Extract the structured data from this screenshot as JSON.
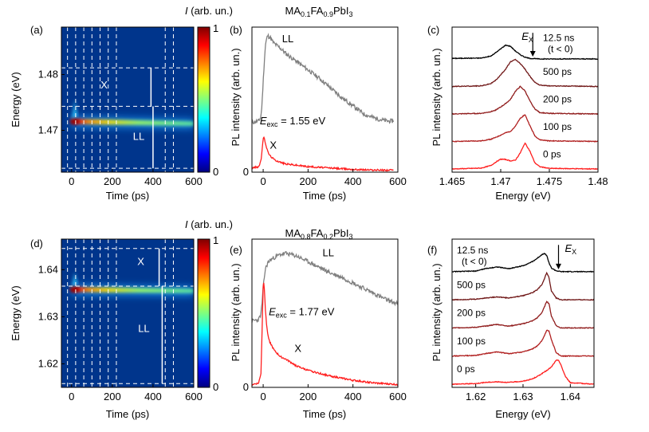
{
  "figure": {
    "titles": {
      "top": {
        "base": "MA",
        "s1": "0.1",
        "mid": "FA",
        "s2": "0.9",
        "end": "PbI",
        "s3": "3"
      },
      "bottom": {
        "base": "MA",
        "s1": "0.8",
        "mid": "FA",
        "s2": "0.2",
        "end": "PbI",
        "s3": "3"
      }
    },
    "colorbar": {
      "label_main": "I",
      "label_rest": " (arb. un.)",
      "tick_top": "1",
      "tick_bottom": "0",
      "stops": [
        "#00007f",
        "#0000ff",
        "#007fff",
        "#00ffff",
        "#7fff7f",
        "#ffff00",
        "#ff7f00",
        "#ff0000",
        "#7f0000"
      ]
    },
    "colors": {
      "grey": "#7f7f7f",
      "red": "#ff1e1e",
      "black": "#000000",
      "dark_red1": "#701818",
      "dark_red2": "#901c1c",
      "dark_red3": "#b01f1f",
      "map_bg": "#00358c"
    }
  },
  "chart_data": [
    {
      "id": "a",
      "panel_label": "(a)",
      "type": "heatmap",
      "xlabel": "Time (ps)",
      "ylabel": "Energy (eV)",
      "xlim": [
        -50,
        600
      ],
      "ylim": [
        1.4625,
        1.4885
      ],
      "xticks": [
        "0",
        "200",
        "400",
        "600"
      ],
      "xtick_values": [
        0,
        200,
        400,
        600
      ],
      "yticks": [
        "1.47",
        "1.48"
      ],
      "ytick_values": [
        1.47,
        1.48
      ],
      "dashed_times": [
        -20,
        20,
        60,
        100,
        140,
        180,
        220,
        460,
        500
      ],
      "dashed_energies": [
        1.4812,
        1.4743,
        1.4632
      ],
      "band_center": 1.4716,
      "band_end": 1.4712,
      "tail": {
        "t_from": 0,
        "t_to": 30,
        "e_to": 1.4755
      },
      "peak_time": 15,
      "labels": [
        {
          "text": "X",
          "t": 160,
          "e": 1.4775
        },
        {
          "text": "LL",
          "t": 330,
          "e": 1.4683
        }
      ],
      "separators": [
        {
          "t": 390,
          "e1": 1.4812,
          "e2": 1.4743
        },
        {
          "t": 400,
          "e1": 1.4743,
          "e2": 1.4632
        }
      ]
    },
    {
      "id": "b",
      "panel_label": "(b)",
      "type": "line",
      "xlabel": "Time (ps)",
      "ylabel": "PL intensity (arb. un.)",
      "xlim": [
        -50,
        600
      ],
      "ylim": [
        0,
        1.05
      ],
      "xticks": [
        "0",
        "200",
        "400",
        "600"
      ],
      "xtick_values": [
        0,
        200,
        400,
        600
      ],
      "ytick_label": "0",
      "series": [
        {
          "name": "LL",
          "color": "grey",
          "t": [
            -50,
            -20,
            -10,
            -5,
            0,
            5,
            10,
            15,
            20,
            25,
            30,
            40,
            50,
            75,
            100,
            150,
            200,
            250,
            300,
            350,
            400,
            450,
            500,
            550,
            580
          ],
          "v": [
            0.36,
            0.37,
            0.4,
            0.5,
            0.65,
            0.8,
            0.92,
            0.96,
            0.99,
            0.98,
            0.98,
            0.95,
            0.93,
            0.9,
            0.86,
            0.8,
            0.74,
            0.68,
            0.61,
            0.54,
            0.48,
            0.42,
            0.39,
            0.37,
            0.37
          ]
        },
        {
          "name": "X",
          "color": "red",
          "t": [
            -50,
            -20,
            -10,
            -5,
            0,
            5,
            10,
            20,
            30,
            50,
            80,
            100,
            150,
            200,
            300,
            400,
            500,
            580
          ],
          "v": [
            0.03,
            0.04,
            0.08,
            0.16,
            0.24,
            0.25,
            0.21,
            0.15,
            0.12,
            0.09,
            0.07,
            0.06,
            0.05,
            0.04,
            0.03,
            0.02,
            0.015,
            0.015
          ]
        }
      ],
      "labels": [
        {
          "text": "LL",
          "t": 110,
          "v": 0.94
        },
        {
          "text": "X",
          "t": 45,
          "v": 0.17
        }
      ],
      "annotation": {
        "main": "E",
        "sub": "exc",
        "rest": " =  1.55 eV",
        "t": -15,
        "v": 0.345
      }
    },
    {
      "id": "c",
      "panel_label": "(c)",
      "type": "line",
      "xlabel": "Energy (eV)",
      "ylabel": "PL intensity (arb. un.)",
      "xlim": [
        1.465,
        1.48
      ],
      "xticks": [
        "1.465",
        "1.47",
        "1.475",
        "1.48"
      ],
      "xtick_values": [
        1.465,
        1.47,
        1.475,
        1.48
      ],
      "marker": {
        "label_main": "E",
        "label_sub": "X",
        "x": 1.4733
      },
      "spectra": [
        {
          "label": "12.5 ns",
          "label2": "(t < 0)",
          "color": "black",
          "offset": 4,
          "x": [
            1.465,
            1.468,
            1.469,
            1.4695,
            1.47,
            1.4705,
            1.471,
            1.4715,
            1.472,
            1.4725,
            1.473,
            1.4735,
            1.474,
            1.48
          ],
          "y": [
            0.02,
            0.03,
            0.1,
            0.22,
            0.35,
            0.48,
            0.44,
            0.28,
            0.15,
            0.06,
            0.02,
            0.01,
            0.0,
            0.0
          ]
        },
        {
          "label": "500 ps",
          "color": "dark_red1",
          "offset": 3,
          "x": [
            1.465,
            1.468,
            1.469,
            1.4695,
            1.47,
            1.4705,
            1.471,
            1.4715,
            1.472,
            1.4725,
            1.473,
            1.4735,
            1.474,
            1.475,
            1.48
          ],
          "y": [
            0.0,
            0.02,
            0.1,
            0.22,
            0.4,
            0.6,
            0.85,
            0.93,
            0.8,
            0.6,
            0.35,
            0.15,
            0.05,
            0.02,
            0.0
          ]
        },
        {
          "label": "200 ps",
          "color": "dark_red2",
          "offset": 2,
          "x": [
            1.465,
            1.468,
            1.469,
            1.4695,
            1.47,
            1.4705,
            1.471,
            1.4715,
            1.472,
            1.4725,
            1.473,
            1.4735,
            1.474,
            1.475,
            1.48
          ],
          "y": [
            0.0,
            0.02,
            0.08,
            0.14,
            0.24,
            0.36,
            0.5,
            0.78,
            0.95,
            0.8,
            0.45,
            0.18,
            0.05,
            0.02,
            0.0
          ]
        },
        {
          "label": "100 ps",
          "color": "dark_red3",
          "offset": 1,
          "x": [
            1.465,
            1.468,
            1.469,
            1.4695,
            1.47,
            1.4705,
            1.471,
            1.4715,
            1.472,
            1.4725,
            1.473,
            1.4735,
            1.474,
            1.475,
            1.48
          ],
          "y": [
            0.0,
            0.02,
            0.08,
            0.14,
            0.22,
            0.3,
            0.35,
            0.52,
            0.8,
            0.93,
            0.55,
            0.2,
            0.06,
            0.02,
            0.0
          ]
        },
        {
          "label": "0 ps",
          "color": "red",
          "offset": 0,
          "x": [
            1.465,
            1.468,
            1.469,
            1.4695,
            1.47,
            1.4705,
            1.471,
            1.4715,
            1.472,
            1.4725,
            1.473,
            1.4735,
            1.474,
            1.475,
            1.48
          ],
          "y": [
            0.0,
            0.03,
            0.12,
            0.24,
            0.34,
            0.33,
            0.28,
            0.3,
            0.55,
            0.9,
            0.62,
            0.22,
            0.08,
            0.02,
            0.0
          ]
        }
      ]
    },
    {
      "id": "d",
      "panel_label": "(d)",
      "type": "heatmap",
      "xlabel": "Time (ps)",
      "ylabel": "Energy (eV)",
      "xlim": [
        -50,
        600
      ],
      "ylim": [
        1.615,
        1.6465
      ],
      "xticks": [
        "0",
        "200",
        "400",
        "600"
      ],
      "xtick_values": [
        0,
        200,
        400,
        600
      ],
      "yticks": [
        "1.62",
        "1.63",
        "1.64"
      ],
      "ytick_values": [
        1.62,
        1.63,
        1.64
      ],
      "dashed_times": [
        -20,
        20,
        60,
        100,
        140,
        180,
        220,
        460,
        500
      ],
      "dashed_energies": [
        1.6445,
        1.6365,
        1.6158
      ],
      "band_center": 1.6358,
      "band_end": 1.6355,
      "tail": {
        "t_from": 0,
        "t_to": 30,
        "e_to": 1.6395
      },
      "peak_time": 15,
      "labels": [
        {
          "text": "X",
          "t": 340,
          "e": 1.641
        },
        {
          "text": "LL",
          "t": 355,
          "e": 1.6268
        }
      ],
      "separators": [
        {
          "t": 430,
          "e1": 1.6445,
          "e2": 1.6365
        },
        {
          "t": 445,
          "e1": 1.6365,
          "e2": 1.6158
        }
      ]
    },
    {
      "id": "e",
      "panel_label": "(e)",
      "type": "line",
      "xlabel": "Time (ps)",
      "ylabel": "PL intensity (arb. un.)",
      "xlim": [
        -50,
        600
      ],
      "ylim": [
        0,
        1.05
      ],
      "xticks": [
        "0",
        "200",
        "400",
        "600"
      ],
      "xtick_values": [
        0,
        200,
        400,
        600
      ],
      "ytick_label": "0",
      "series": [
        {
          "name": "LL",
          "color": "grey",
          "t": [
            -50,
            -20,
            -10,
            -5,
            0,
            5,
            10,
            20,
            30,
            50,
            75,
            100,
            150,
            200,
            250,
            300,
            350,
            400,
            450,
            500,
            550,
            600
          ],
          "v": [
            0.47,
            0.48,
            0.52,
            0.6,
            0.7,
            0.78,
            0.84,
            0.88,
            0.9,
            0.92,
            0.94,
            0.95,
            0.93,
            0.89,
            0.85,
            0.81,
            0.78,
            0.74,
            0.7,
            0.66,
            0.62,
            0.59
          ]
        },
        {
          "name": "X",
          "color": "red",
          "t": [
            -50,
            -20,
            -10,
            -5,
            0,
            3,
            6,
            10,
            15,
            20,
            30,
            50,
            75,
            100,
            150,
            200,
            250,
            300,
            400,
            500,
            600
          ],
          "v": [
            0.02,
            0.03,
            0.1,
            0.4,
            0.72,
            0.75,
            0.68,
            0.55,
            0.45,
            0.38,
            0.32,
            0.26,
            0.22,
            0.2,
            0.15,
            0.12,
            0.1,
            0.08,
            0.05,
            0.03,
            0.02
          ]
        }
      ],
      "labels": [
        {
          "text": "LL",
          "t": 290,
          "v": 0.93
        },
        {
          "text": "X",
          "t": 155,
          "v": 0.25
        }
      ],
      "annotation": {
        "main": "E",
        "sub": "exc",
        "rest": " =  1.77 eV",
        "t": 25,
        "v": 0.51
      }
    },
    {
      "id": "f",
      "panel_label": "(f)",
      "type": "line",
      "xlabel": "Energy (eV)",
      "ylabel": "PL intensity (arb. un.)",
      "xlim": [
        1.615,
        1.645
      ],
      "xticks": [
        "1.62",
        "1.63",
        "1.64"
      ],
      "xtick_values": [
        1.62,
        1.63,
        1.64
      ],
      "marker": {
        "label_main": "E",
        "label_sub": "X",
        "x": 1.6375
      },
      "spectra": [
        {
          "label": "12.5 ns",
          "label2": "(t < 0)",
          "color": "black",
          "offset": 4,
          "x": [
            1.615,
            1.62,
            1.622,
            1.6245,
            1.627,
            1.63,
            1.632,
            1.633,
            1.634,
            1.6345,
            1.635,
            1.6355,
            1.636,
            1.637,
            1.638,
            1.645
          ],
          "y": [
            0.0,
            0.02,
            0.1,
            0.16,
            0.1,
            0.2,
            0.34,
            0.45,
            0.58,
            0.62,
            0.55,
            0.3,
            0.12,
            0.03,
            0.0,
            0.0
          ]
        },
        {
          "label": "500 ps",
          "color": "dark_red1",
          "offset": 3,
          "x": [
            1.615,
            1.62,
            1.622,
            1.6245,
            1.627,
            1.63,
            1.632,
            1.633,
            1.634,
            1.6345,
            1.635,
            1.6355,
            1.636,
            1.637,
            1.638,
            1.645
          ],
          "y": [
            0.0,
            0.02,
            0.06,
            0.1,
            0.06,
            0.14,
            0.24,
            0.34,
            0.52,
            0.7,
            0.92,
            0.75,
            0.3,
            0.06,
            0.0,
            0.0
          ]
        },
        {
          "label": "200 ps",
          "color": "dark_red2",
          "offset": 2,
          "x": [
            1.615,
            1.62,
            1.622,
            1.6245,
            1.627,
            1.63,
            1.632,
            1.633,
            1.634,
            1.6345,
            1.635,
            1.6355,
            1.636,
            1.637,
            1.638,
            1.645
          ],
          "y": [
            0.0,
            0.02,
            0.06,
            0.12,
            0.06,
            0.14,
            0.24,
            0.34,
            0.52,
            0.7,
            0.9,
            0.82,
            0.4,
            0.08,
            0.0,
            0.0
          ]
        },
        {
          "label": "100 ps",
          "color": "dark_red3",
          "offset": 1,
          "x": [
            1.615,
            1.62,
            1.622,
            1.6245,
            1.627,
            1.63,
            1.632,
            1.633,
            1.634,
            1.6345,
            1.635,
            1.6355,
            1.636,
            1.637,
            1.638,
            1.645
          ],
          "y": [
            0.0,
            0.02,
            0.08,
            0.14,
            0.08,
            0.14,
            0.24,
            0.34,
            0.52,
            0.68,
            0.88,
            0.85,
            0.55,
            0.12,
            0.0,
            0.0
          ]
        },
        {
          "label": "0 ps",
          "color": "red",
          "offset": 0,
          "x": [
            1.615,
            1.62,
            1.622,
            1.6245,
            1.627,
            1.63,
            1.632,
            1.633,
            1.634,
            1.635,
            1.636,
            1.6365,
            1.637,
            1.6375,
            1.638,
            1.639,
            1.64,
            1.645
          ],
          "y": [
            0.0,
            0.02,
            0.06,
            0.08,
            0.06,
            0.1,
            0.18,
            0.26,
            0.36,
            0.46,
            0.58,
            0.7,
            0.8,
            0.82,
            0.65,
            0.25,
            0.05,
            0.0
          ]
        }
      ]
    }
  ]
}
